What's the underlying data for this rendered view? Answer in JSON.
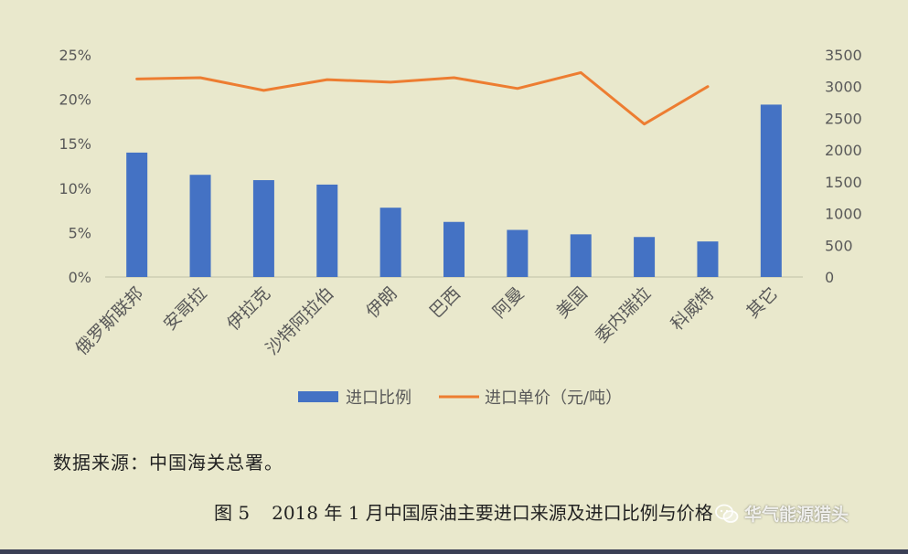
{
  "chart_data": {
    "type": "bar",
    "categories": [
      "俄罗斯联邦",
      "安哥拉",
      "伊拉克",
      "沙特阿拉伯",
      "伊朗",
      "巴西",
      "阿曼",
      "美国",
      "委内瑞拉",
      "科威特",
      "其它"
    ],
    "series": [
      {
        "name": "进口比例",
        "type": "bar",
        "axis": "left",
        "color": "#4472c4",
        "values": [
          14.0,
          11.5,
          10.9,
          10.4,
          7.8,
          6.2,
          5.3,
          4.8,
          4.5,
          4.0,
          19.4
        ],
        "missing_from": null
      },
      {
        "name": "进口单价（元/吨）",
        "type": "line",
        "axis": "right",
        "color": "#ed7d31",
        "values": [
          3120,
          3140,
          2940,
          3110,
          3070,
          3140,
          2970,
          3220,
          2410,
          3000,
          null
        ]
      }
    ],
    "y_left": {
      "ticks": [
        "0%",
        "5%",
        "10%",
        "15%",
        "20%",
        "25%"
      ],
      "min": 0,
      "max": 25
    },
    "y_right": {
      "ticks": [
        "0",
        "500",
        "1000",
        "1500",
        "2000",
        "2500",
        "3000",
        "3500"
      ],
      "min": 0,
      "max": 3500
    },
    "grid": false,
    "legend_position": "bottom"
  },
  "source_note": "数据来源：中国海关总署。",
  "caption": {
    "fig_no": "图 5",
    "title": "2018 年 1 月中国原油主要进口来源及进口比例与价格"
  },
  "watermark": {
    "icon": "wechat-icon",
    "text": "华气能源猎头"
  }
}
